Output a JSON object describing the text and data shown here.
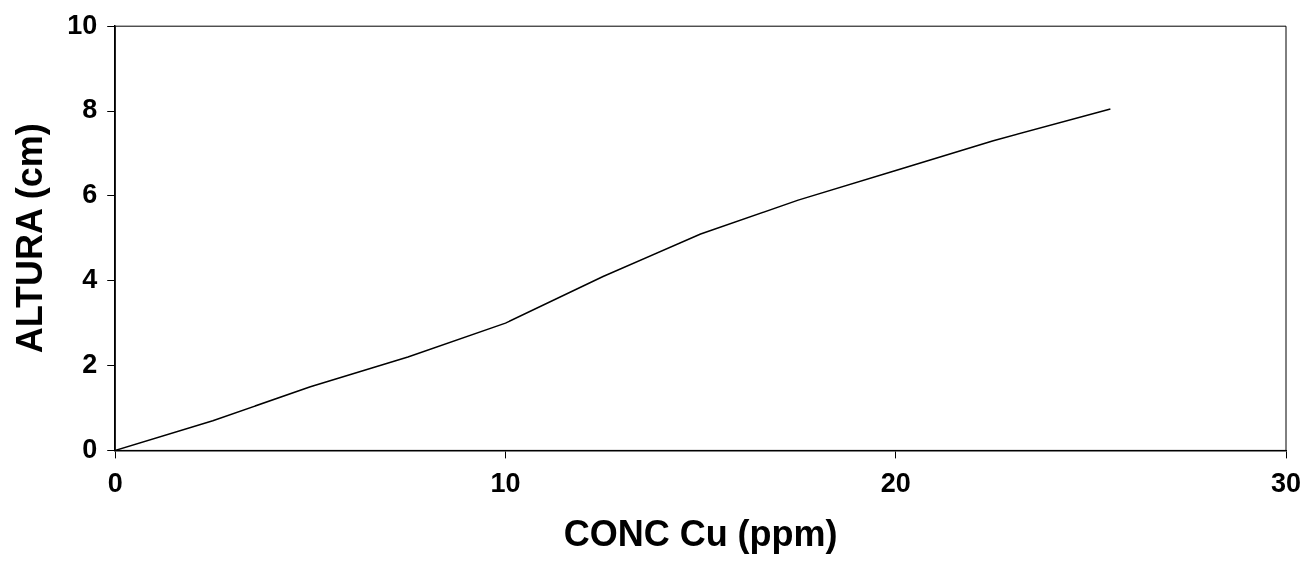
{
  "chart_data": {
    "type": "line",
    "xlabel": "CONC Cu (ppm)",
    "ylabel": "ALTURA (cm)",
    "x": [
      0,
      2.5,
      5,
      7.5,
      10,
      12.5,
      15,
      17.5,
      20,
      22.5,
      25.5
    ],
    "series": [
      {
        "color": "#000000",
        "values": [
          0,
          0.7,
          1.5,
          2.2,
          3,
          4.1,
          5.1,
          5.9,
          6.6,
          7.3,
          8.05
        ]
      }
    ],
    "xlim": [
      0,
      30
    ],
    "xticks": [
      0,
      10,
      20,
      30
    ],
    "ylim": [
      0,
      10
    ],
    "yticks": [
      0,
      2,
      4,
      6,
      8,
      10
    ],
    "grid": false,
    "legend": false,
    "marker": "none",
    "line_style": "solid"
  }
}
